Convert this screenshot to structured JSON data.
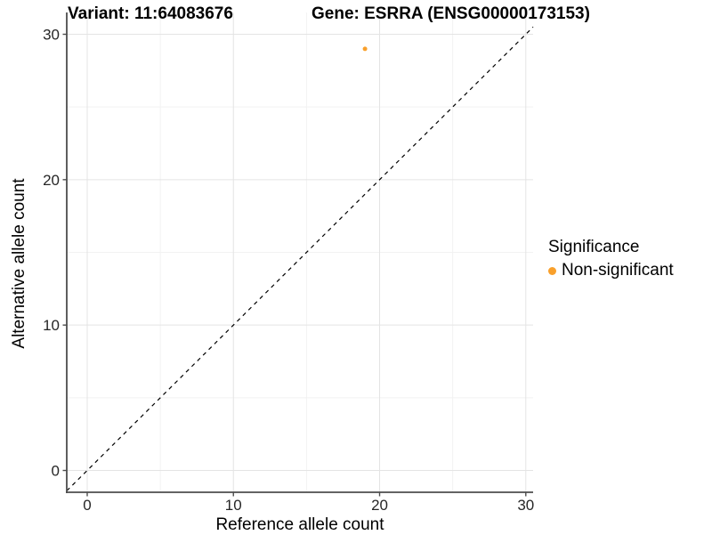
{
  "titles": {
    "variant": "Variant: 11:64083676",
    "gene": "Gene: ESRRA (ENSG00000173153)"
  },
  "legend": {
    "title": "Significance",
    "items": [
      {
        "label": "Non-significant",
        "color": "#F9A02B"
      }
    ]
  },
  "colors": {
    "point_orange": "#F9A02B",
    "axis_line": "#4D4D4D",
    "tick_label": "#262626",
    "grid_major": "#E4E4E4",
    "grid_minor": "#F2F2F2",
    "reference_line": "#000000"
  },
  "chart_data": {
    "type": "scatter",
    "title_left": "Variant: 11:64083676",
    "title_right": "Gene: ESRRA (ENSG00000173153)",
    "xlabel": "Reference allele count",
    "ylabel": "Alternative allele count",
    "xlim": [
      -1.4,
      30.5
    ],
    "ylim": [
      -1.5,
      31.5
    ],
    "x_major_ticks": [
      0,
      10,
      20,
      30
    ],
    "x_minor_ticks": [
      5,
      15,
      25
    ],
    "y_major_ticks": [
      0,
      10,
      20,
      30
    ],
    "y_minor_ticks": [
      5,
      15,
      25
    ],
    "grid": true,
    "legend_position": "right",
    "legend_title": "Significance",
    "series": [
      {
        "name": "Non-significant",
        "color": "#F9A02B",
        "points": [
          {
            "x": 19,
            "y": 29
          }
        ]
      }
    ],
    "reference_line": {
      "type": "identity",
      "slope": 1,
      "intercept": 0,
      "linestyle": "dashed",
      "color": "#000000"
    }
  }
}
